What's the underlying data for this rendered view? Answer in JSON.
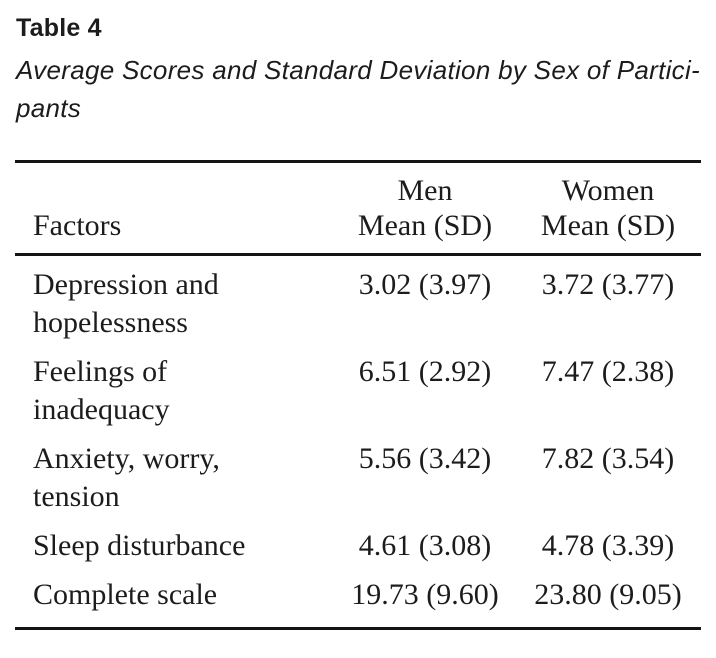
{
  "page": {
    "table_label": "Table 4",
    "caption_line1": "Average Scores and Standard Deviation by Sex of Partici-",
    "caption_line2": "pants"
  },
  "table": {
    "header": {
      "factors": "Factors",
      "men_group": "Men",
      "men_sub": "Mean (SD)",
      "women_group": "Women",
      "women_sub": "Mean (SD)"
    },
    "rows": [
      {
        "factor": [
          "Depression and",
          "hopelessness"
        ],
        "men": "3.02 (3.97)",
        "women": "3.72 (3.77)"
      },
      {
        "factor": [
          "Feelings of",
          "inadequacy"
        ],
        "men": "6.51 (2.92)",
        "women": "7.47 (2.38)"
      },
      {
        "factor": [
          "Anxiety, worry,",
          "tension"
        ],
        "men": "5.56 (3.42)",
        "women": "7.82 (3.54)"
      },
      {
        "factor": [
          "Sleep disturbance"
        ],
        "men": "4.61 (3.08)",
        "women": "4.78 (3.39)"
      },
      {
        "factor": [
          "Complete scale"
        ],
        "men": "19.73 (9.60)",
        "women": "23.80 (9.05)"
      }
    ]
  },
  "colors": {
    "text": "#1c1c1c",
    "rule": "#141414",
    "background": "#ffffff"
  }
}
